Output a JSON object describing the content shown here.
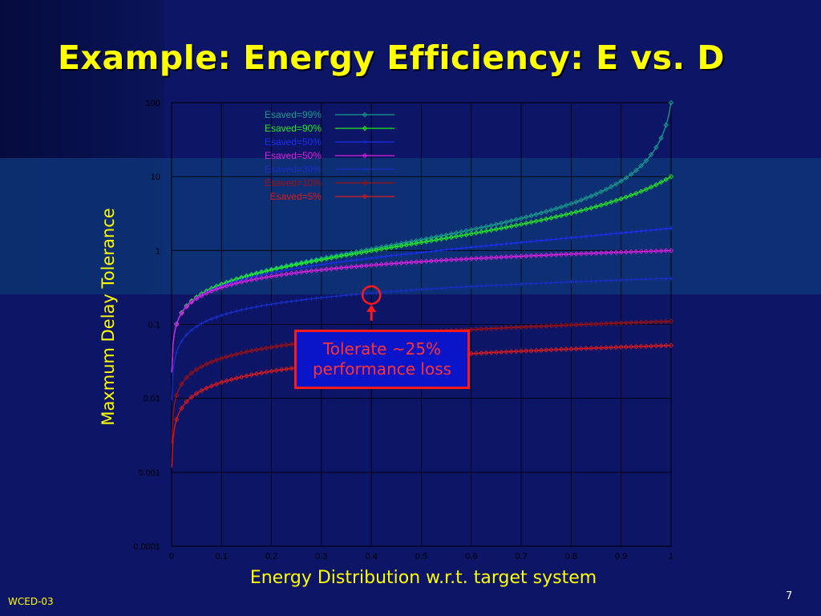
{
  "slide": {
    "title": "Example: Energy Efficiency: E vs. D",
    "footer_left": "WCED-03",
    "page_number": "7"
  },
  "callout": {
    "text": "Tolerate ~25%\nperformance loss"
  },
  "colors": {
    "background": "#0c1566",
    "title": "#ffff00",
    "callout_border": "#ff1a1a"
  },
  "chart_data": {
    "type": "line",
    "title": "",
    "xlabel": "Energy Distribution w.r.t. target system",
    "ylabel": "Maxmum Delay Tolerance",
    "x_scale": "linear",
    "y_scale": "log",
    "xlim": [
      0,
      1
    ],
    "ylim": [
      0.0001,
      100
    ],
    "x_ticks": [
      "0",
      "0.1",
      "0.2",
      "0.3",
      "0.4",
      "0.5",
      "0.6",
      "0.7",
      "0.8",
      "0.9",
      "1"
    ],
    "y_ticks": [
      "0.0001",
      "0.001",
      "0.01",
      "0.1",
      "1",
      "10",
      "100"
    ],
    "grid": true,
    "legend_position": "top-left",
    "highlight_point": {
      "x": 0.4,
      "y": 0.25
    },
    "series": [
      {
        "name": "Esaved=99%",
        "color": "#14a08c",
        "marker": "diamond",
        "a": 1.0,
        "p": 0.5,
        "r": 0.99
      },
      {
        "name": "Esaved=90%",
        "color": "#22ee22",
        "marker": "diamond",
        "a": 1.0,
        "p": 0.5,
        "r": 0.9
      },
      {
        "name": "Esaved=50%",
        "color": "#1e2ef0",
        "marker": "plus",
        "a": 1.0,
        "p": 0.5,
        "r": 0.5
      },
      {
        "name": "Esaved=50%",
        "color": "#e020e0",
        "marker": "diamond",
        "a": 1.0,
        "p": 0.5,
        "r": 0.0
      },
      {
        "name": "Esaved=30%",
        "color": "#1a2ec8",
        "marker": "plus",
        "a": 0.42,
        "p": 0.5,
        "r": 0.0
      },
      {
        "name": "Esaved=10%",
        "color": "#a01010",
        "marker": "diamond",
        "a": 0.11,
        "p": 0.5,
        "r": 0.0
      },
      {
        "name": "Esaved=5%",
        "color": "#e01a1a",
        "marker": "diamond",
        "a": 0.052,
        "p": 0.5,
        "r": 0.0
      }
    ]
  }
}
